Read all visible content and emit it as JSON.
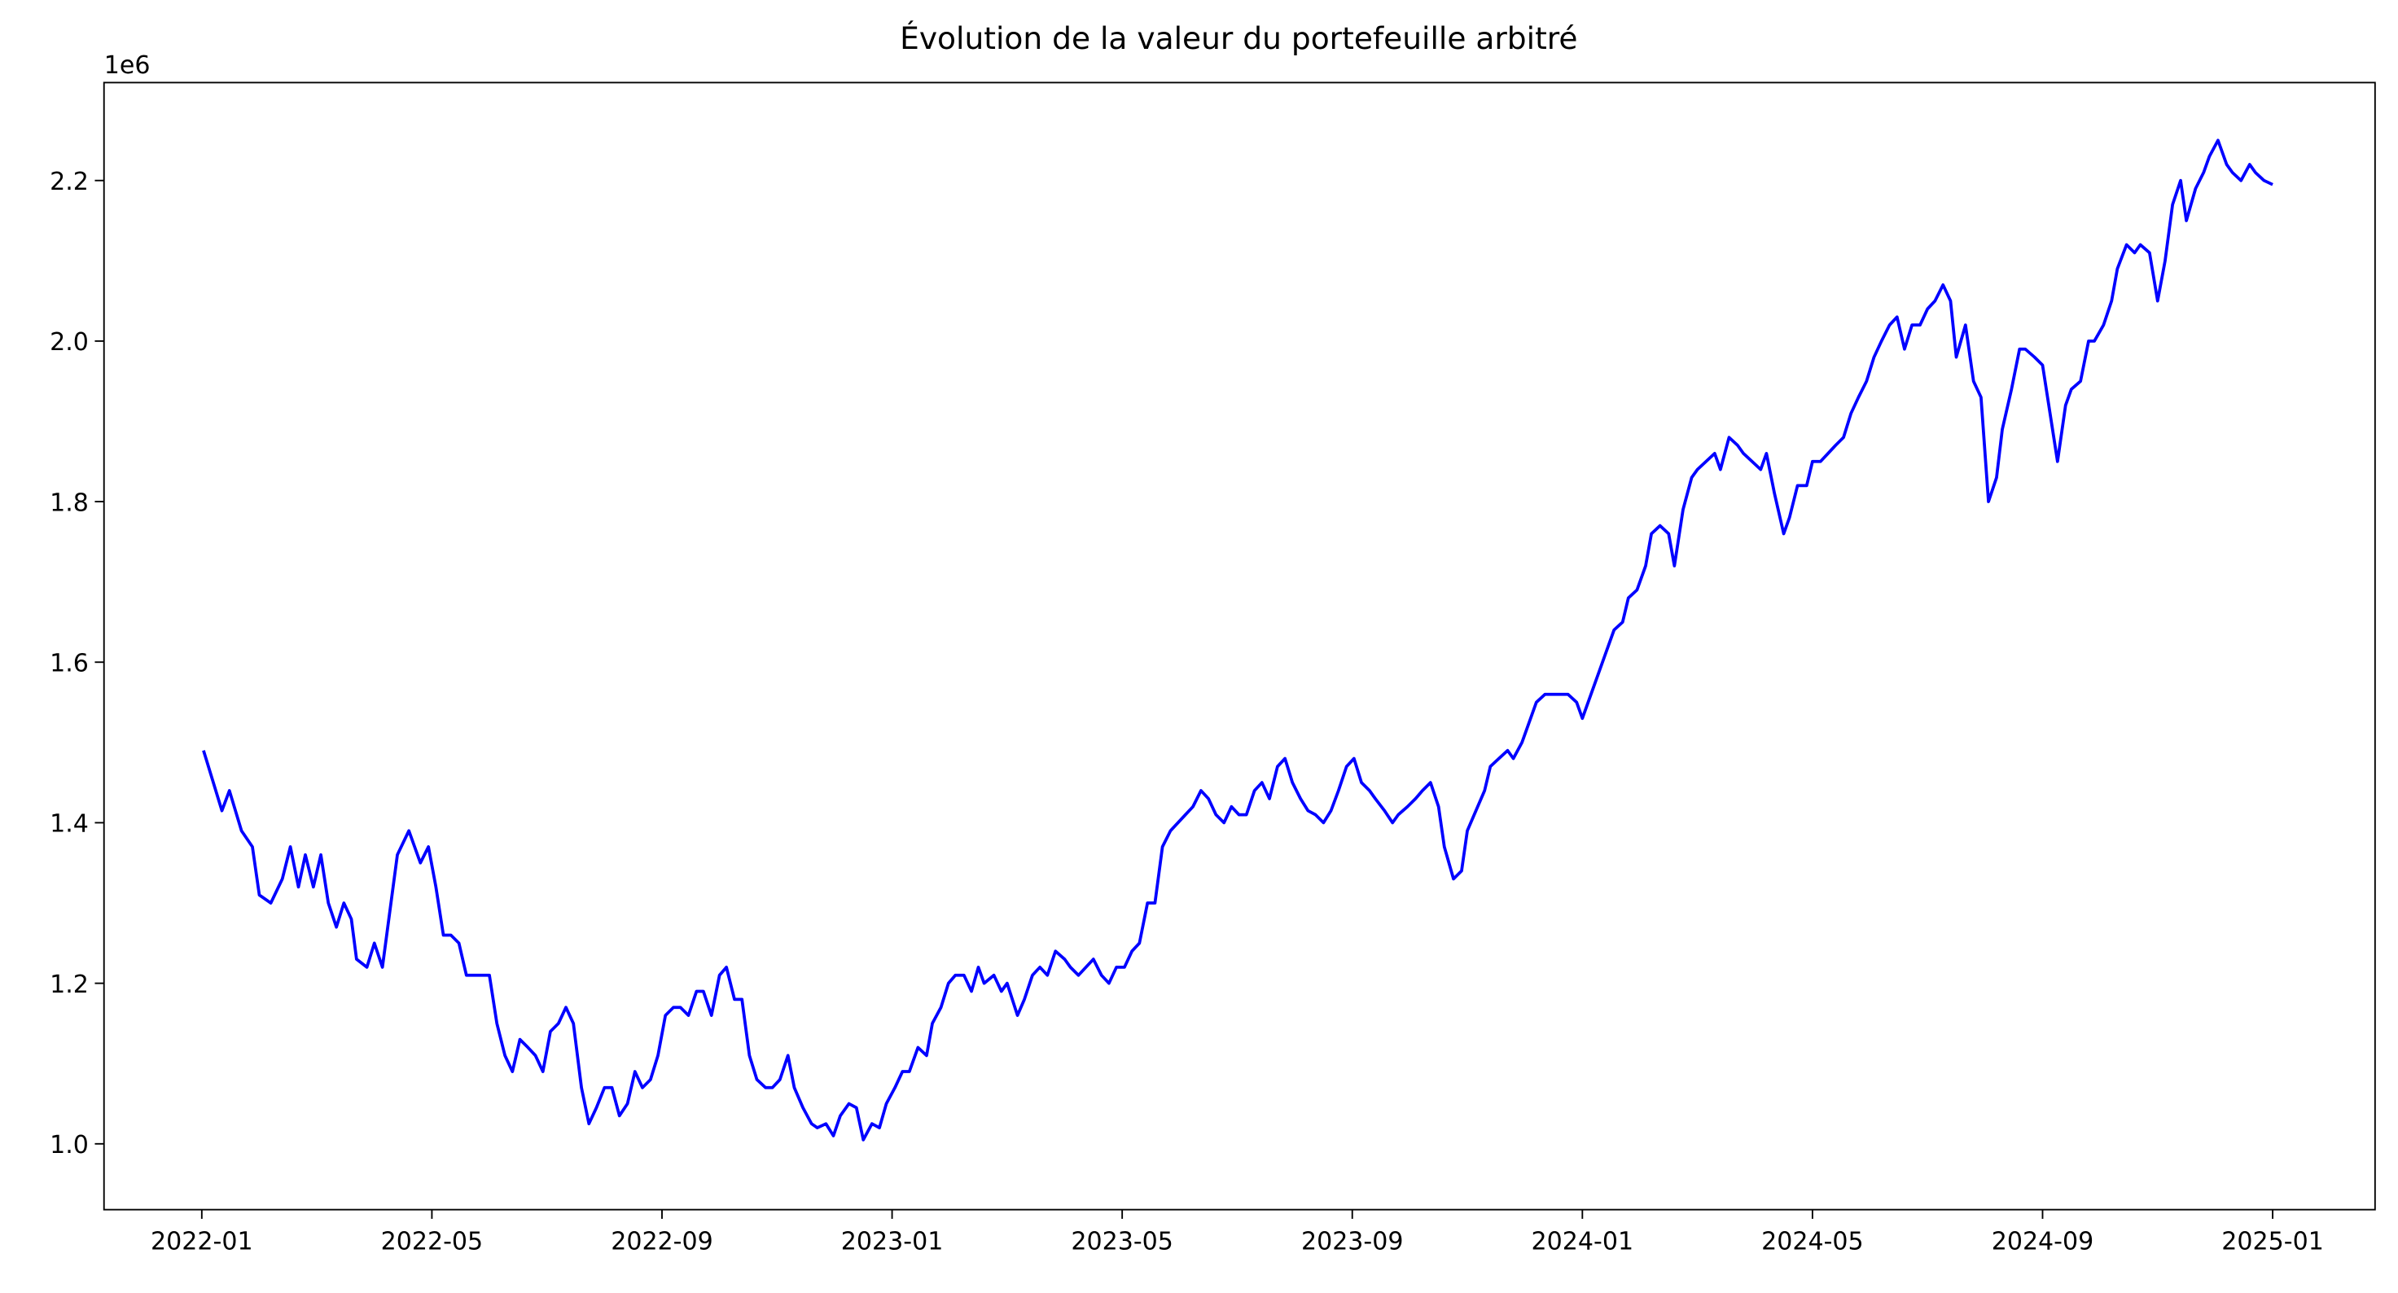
{
  "chart_data": {
    "type": "line",
    "title": "Évolution de la valeur du portefeuille arbitré",
    "y_offset_label": "1e6",
    "color": "#0000ff",
    "x": [
      0.03,
      0.35,
      0.48,
      0.69,
      0.88,
      1.0,
      1.2,
      1.4,
      1.54,
      1.68,
      1.8,
      1.94,
      2.07,
      2.2,
      2.34,
      2.47,
      2.6,
      2.69,
      2.87,
      3.0,
      3.14,
      3.27,
      3.4,
      3.6,
      3.8,
      3.94,
      4.07,
      4.2,
      4.33,
      4.47,
      4.6,
      4.73,
      4.87,
      5.0,
      5.13,
      5.27,
      5.4,
      5.53,
      5.67,
      5.8,
      5.93,
      6.06,
      6.2,
      6.33,
      6.46,
      6.6,
      6.73,
      6.86,
      7.0,
      7.13,
      7.26,
      7.4,
      7.53,
      7.66,
      7.8,
      7.93,
      8.06,
      8.2,
      8.32,
      8.46,
      8.6,
      8.72,
      8.86,
      9.0,
      9.12,
      9.26,
      9.39,
      9.52,
      9.65,
      9.8,
      9.92,
      10.05,
      10.19,
      10.3,
      10.45,
      10.6,
      10.7,
      10.85,
      10.98,
      11.1,
      11.25,
      11.38,
      11.5,
      11.65,
      11.78,
      11.9,
      12.05,
      12.18,
      12.3,
      12.45,
      12.6,
      12.7,
      12.85,
      12.98,
      13.1,
      13.25,
      13.38,
      13.5,
      13.6,
      13.77,
      13.9,
      14.0,
      14.18,
      14.3,
      14.44,
      14.57,
      14.7,
      14.84,
      15.0,
      15.1,
      15.24,
      15.37,
      15.5,
      15.64,
      15.77,
      15.9,
      16.04,
      16.17,
      16.3,
      16.44,
      16.57,
      16.7,
      16.84,
      16.97,
      17.1,
      17.23,
      17.37,
      17.5,
      17.63,
      17.77,
      17.9,
      18.03,
      18.16,
      18.3,
      18.43,
      18.56,
      18.7,
      18.83,
      18.96,
      19.1,
      19.23,
      19.36,
      19.5,
      19.63,
      19.76,
      19.9,
      20.03,
      20.16,
      20.3,
      20.4,
      20.56,
      20.7,
      20.8,
      20.96,
      21.1,
      21.22,
      21.36,
      21.5,
      21.6,
      21.76,
      21.9,
      22.0,
      22.15,
      22.3,
      22.4,
      22.55,
      22.7,
      22.8,
      22.95,
      23.1,
      23.2,
      23.35,
      23.5,
      23.6,
      23.75,
      23.9,
      24.0,
      24.15,
      24.3,
      24.4,
      24.55,
      24.7,
      24.8,
      24.95,
      25.1,
      25.2,
      25.35,
      25.5,
      25.6,
      25.75,
      25.9,
      26.0,
      26.15,
      26.3,
      26.4,
      26.55,
      26.7,
      26.8,
      26.95,
      27.1,
      27.2,
      27.34,
      27.5,
      27.6,
      27.74,
      27.9,
      28.0,
      28.14,
      28.27,
      28.4,
      28.54,
      28.67,
      28.8,
      28.94,
      29.07,
      29.2,
      29.34,
      29.47,
      29.6,
      29.73,
      29.87,
      30.0,
      30.13,
      30.27,
      30.4,
      30.5,
      30.66,
      30.8,
      30.93,
      31.06,
      31.2,
      31.3,
      31.46,
      31.6,
      31.7,
      31.86,
      32.0,
      32.13,
      32.26,
      32.4,
      32.5,
      32.66,
      32.8,
      32.9,
      33.06,
      33.2,
      33.3,
      33.46,
      33.6,
      33.7,
      33.86,
      34.0,
      34.13,
      34.26,
      34.4,
      34.5,
      34.66,
      34.8,
      34.9,
      35.05,
      35.2,
      35.3,
      35.45,
      35.6,
      35.7,
      35.85,
      36.0
    ],
    "values": [
      1.49,
      1.415,
      1.44,
      1.39,
      1.37,
      1.31,
      1.3,
      1.33,
      1.37,
      1.32,
      1.36,
      1.32,
      1.36,
      1.3,
      1.27,
      1.3,
      1.28,
      1.23,
      1.22,
      1.25,
      1.22,
      1.29,
      1.36,
      1.39,
      1.35,
      1.37,
      1.32,
      1.26,
      1.26,
      1.25,
      1.21,
      1.21,
      1.21,
      1.21,
      1.15,
      1.11,
      1.09,
      1.13,
      1.12,
      1.11,
      1.09,
      1.14,
      1.15,
      1.17,
      1.15,
      1.07,
      1.025,
      1.045,
      1.07,
      1.07,
      1.035,
      1.05,
      1.09,
      1.07,
      1.08,
      1.11,
      1.16,
      1.17,
      1.17,
      1.16,
      1.19,
      1.19,
      1.16,
      1.21,
      1.22,
      1.18,
      1.18,
      1.11,
      1.08,
      1.07,
      1.07,
      1.08,
      1.11,
      1.07,
      1.045,
      1.025,
      1.02,
      1.025,
      1.01,
      1.035,
      1.05,
      1.045,
      1.005,
      1.025,
      1.02,
      1.05,
      1.07,
      1.09,
      1.09,
      1.12,
      1.11,
      1.15,
      1.17,
      1.2,
      1.21,
      1.21,
      1.19,
      1.22,
      1.2,
      1.21,
      1.19,
      1.2,
      1.16,
      1.18,
      1.21,
      1.22,
      1.21,
      1.24,
      1.23,
      1.22,
      1.21,
      1.22,
      1.23,
      1.21,
      1.2,
      1.22,
      1.22,
      1.24,
      1.25,
      1.3,
      1.3,
      1.37,
      1.39,
      1.4,
      1.41,
      1.42,
      1.44,
      1.43,
      1.41,
      1.4,
      1.42,
      1.41,
      1.41,
      1.44,
      1.45,
      1.43,
      1.47,
      1.48,
      1.45,
      1.43,
      1.415,
      1.41,
      1.4,
      1.415,
      1.44,
      1.47,
      1.48,
      1.45,
      1.44,
      1.43,
      1.415,
      1.4,
      1.41,
      1.42,
      1.43,
      1.44,
      1.45,
      1.42,
      1.37,
      1.33,
      1.34,
      1.39,
      1.415,
      1.44,
      1.47,
      1.48,
      1.49,
      1.48,
      1.5,
      1.53,
      1.55,
      1.56,
      1.56,
      1.56,
      1.56,
      1.55,
      1.53,
      1.56,
      1.59,
      1.61,
      1.64,
      1.65,
      1.68,
      1.69,
      1.72,
      1.76,
      1.77,
      1.76,
      1.72,
      1.79,
      1.83,
      1.84,
      1.85,
      1.86,
      1.84,
      1.88,
      1.87,
      1.86,
      1.85,
      1.84,
      1.86,
      1.81,
      1.76,
      1.78,
      1.82,
      1.82,
      1.85,
      1.85,
      1.86,
      1.87,
      1.88,
      1.91,
      1.93,
      1.95,
      1.98,
      2.0,
      2.02,
      2.03,
      1.99,
      2.02,
      2.02,
      2.04,
      2.05,
      2.07,
      2.05,
      1.98,
      2.02,
      1.95,
      1.93,
      1.8,
      1.83,
      1.89,
      1.94,
      1.99,
      1.99,
      1.98,
      1.97,
      1.91,
      1.85,
      1.92,
      1.94,
      1.95,
      2.0,
      2.0,
      2.02,
      2.05,
      2.09,
      2.12,
      2.11,
      2.12,
      2.11,
      2.05,
      2.1,
      2.17,
      2.2,
      2.15,
      2.19,
      2.21,
      2.23,
      2.25,
      2.22,
      2.21,
      2.2,
      2.22,
      2.21,
      2.2,
      2.195
    ],
    "xlim": [
      -1.7,
      37.78
    ],
    "ylim": [
      0.918,
      2.322
    ],
    "xticks": [
      {
        "value": 0,
        "label": "2022-01"
      },
      {
        "value": 4,
        "label": "2022-05"
      },
      {
        "value": 8,
        "label": "2022-09"
      },
      {
        "value": 12,
        "label": "2023-01"
      },
      {
        "value": 16,
        "label": "2023-05"
      },
      {
        "value": 20,
        "label": "2023-09"
      },
      {
        "value": 24,
        "label": "2024-01"
      },
      {
        "value": 28,
        "label": "2024-05"
      },
      {
        "value": 32,
        "label": "2024-09"
      },
      {
        "value": 36,
        "label": "2025-01"
      }
    ],
    "yticks": [
      {
        "value": 1,
        "label": "1.0"
      },
      1.2,
      1.4,
      1.6,
      1.8,
      {
        "value": 2,
        "label": "2.0"
      },
      2.2
    ],
    "grid": false
  }
}
